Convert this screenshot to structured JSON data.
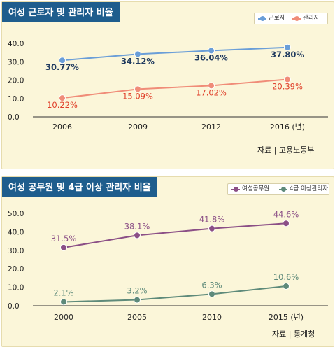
{
  "chart_data": [
    {
      "type": "line",
      "title": "여성 근로자 및 관리자 비율",
      "source": "자료 | 고용노동부",
      "categories": [
        "2006",
        "2009",
        "2012",
        "2016 (년)"
      ],
      "yticks": [
        "40.0",
        "30.0",
        "20.0",
        "10.0",
        "0.0"
      ],
      "ylim": [
        0,
        40
      ],
      "legend_position": "top-right",
      "series": [
        {
          "name": "근로자",
          "values": [
            30.77,
            34.12,
            36.04,
            37.8
          ],
          "labels": [
            "30.77%",
            "34.12%",
            "36.04%",
            "37.80%"
          ],
          "color": "#6a9ed8",
          "label_color": "#1f3a5f"
        },
        {
          "name": "관리자",
          "values": [
            10.22,
            15.09,
            17.02,
            20.39
          ],
          "labels": [
            "10.22%",
            "15.09%",
            "17.02%",
            "20.39%"
          ],
          "color": "#f08c78",
          "label_color": "#e0402a"
        }
      ]
    },
    {
      "type": "line",
      "title": "여성 공무원 및 4급 이상 관리자 비율",
      "source": "자료 | 통계청",
      "categories": [
        "2000",
        "2005",
        "2010",
        "2015 (년)"
      ],
      "yticks": [
        "50.0",
        "40.0",
        "30.0",
        "20.0",
        "10.0",
        "0.0"
      ],
      "ylim": [
        0,
        50
      ],
      "legend_position": "top-right",
      "series": [
        {
          "name": "여성공무원",
          "values": [
            31.5,
            38.1,
            41.8,
            44.6
          ],
          "labels": [
            "31.5%",
            "38.1%",
            "41.8%",
            "44.6%"
          ],
          "color": "#8b4f86",
          "label_color": "#8b4f86"
        },
        {
          "name": "4급 이상관리자",
          "values": [
            2.1,
            3.2,
            6.3,
            10.6
          ],
          "labels": [
            "2.1%",
            "3.2%",
            "6.3%",
            "10.6%"
          ],
          "color": "#5e8a7a",
          "label_color": "#5e8a7a"
        }
      ]
    }
  ]
}
